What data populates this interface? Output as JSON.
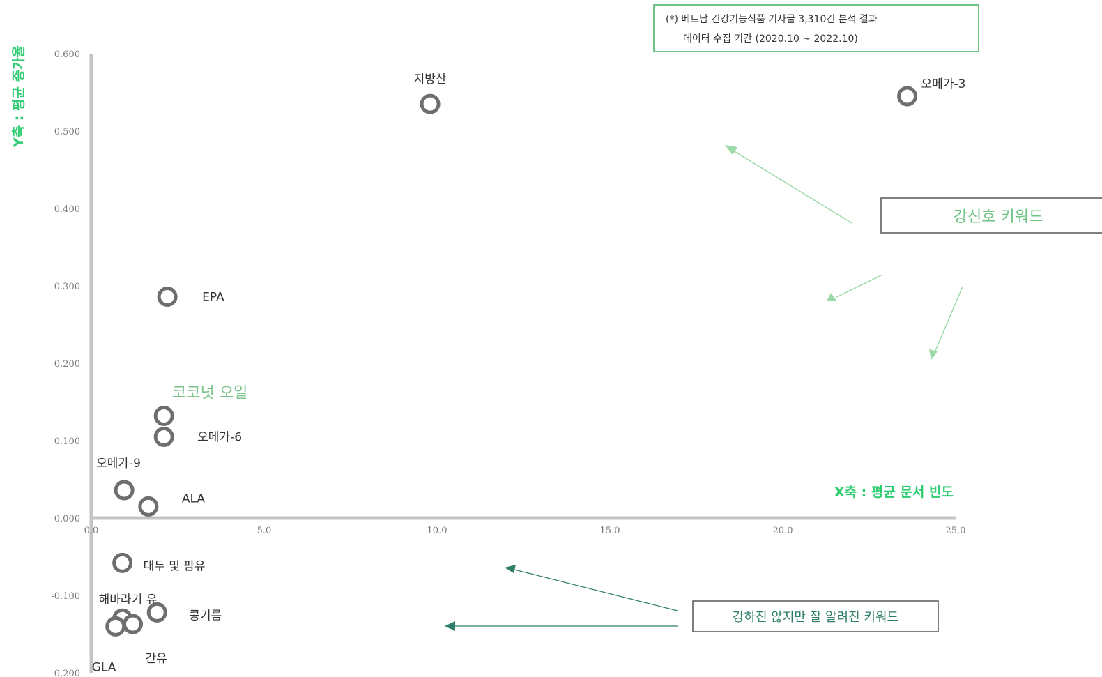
{
  "colors": {
    "axis": "#c4c4c4",
    "marker": "#6e6e6e",
    "accent_green": "#7cc48e",
    "axis_title_green": "#2ecc71",
    "teal": "#2f7d6b"
  },
  "note": {
    "line1": "(*) 베트남 건강기능식품 기사글 3,310건 분석 결과",
    "line2": "데이터 수집 기간 (2020.10 ~ 2022.10)"
  },
  "callouts": {
    "strong_signal": "강신호 키워드",
    "known_keywords": "강하진 않지만 잘 알려진 키워드"
  },
  "chart_data": {
    "type": "scatter",
    "xlabel": "X축 : 평균 문서 빈도",
    "ylabel": "Y축 : 평균 증가율",
    "xlim": [
      0,
      25
    ],
    "ylim": [
      -0.2,
      0.6
    ],
    "x_ticks": [
      "0.0",
      "5.0",
      "10.0",
      "15.0",
      "20.0",
      "25.0"
    ],
    "y_ticks": [
      "0.600",
      "0.500",
      "0.400",
      "0.300",
      "0.200",
      "0.100",
      "0.000",
      "-0.100",
      "-0.200"
    ],
    "points": [
      {
        "label": "지방산",
        "x": 9.8,
        "y": 0.535
      },
      {
        "label": "오메가-3",
        "x": 23.6,
        "y": 0.545
      },
      {
        "label": "EPA",
        "x": 2.2,
        "y": 0.286
      },
      {
        "label": "코코넛 오일",
        "x": 2.1,
        "y": 0.132
      },
      {
        "label": "오메가-6",
        "x": 2.1,
        "y": 0.105
      },
      {
        "label": "오메가-9",
        "x": 0.95,
        "y": 0.036
      },
      {
        "label": "ALA",
        "x": 1.65,
        "y": 0.015
      },
      {
        "label": "대두 및 팜유",
        "x": 0.9,
        "y": -0.058
      },
      {
        "label": "콩기름",
        "x": 1.9,
        "y": -0.122
      },
      {
        "label": "해바라기 유",
        "x": 0.9,
        "y": -0.13
      },
      {
        "label": "간유",
        "x": 1.2,
        "y": -0.137
      },
      {
        "label": "GLA",
        "x": 0.7,
        "y": -0.14
      }
    ]
  }
}
